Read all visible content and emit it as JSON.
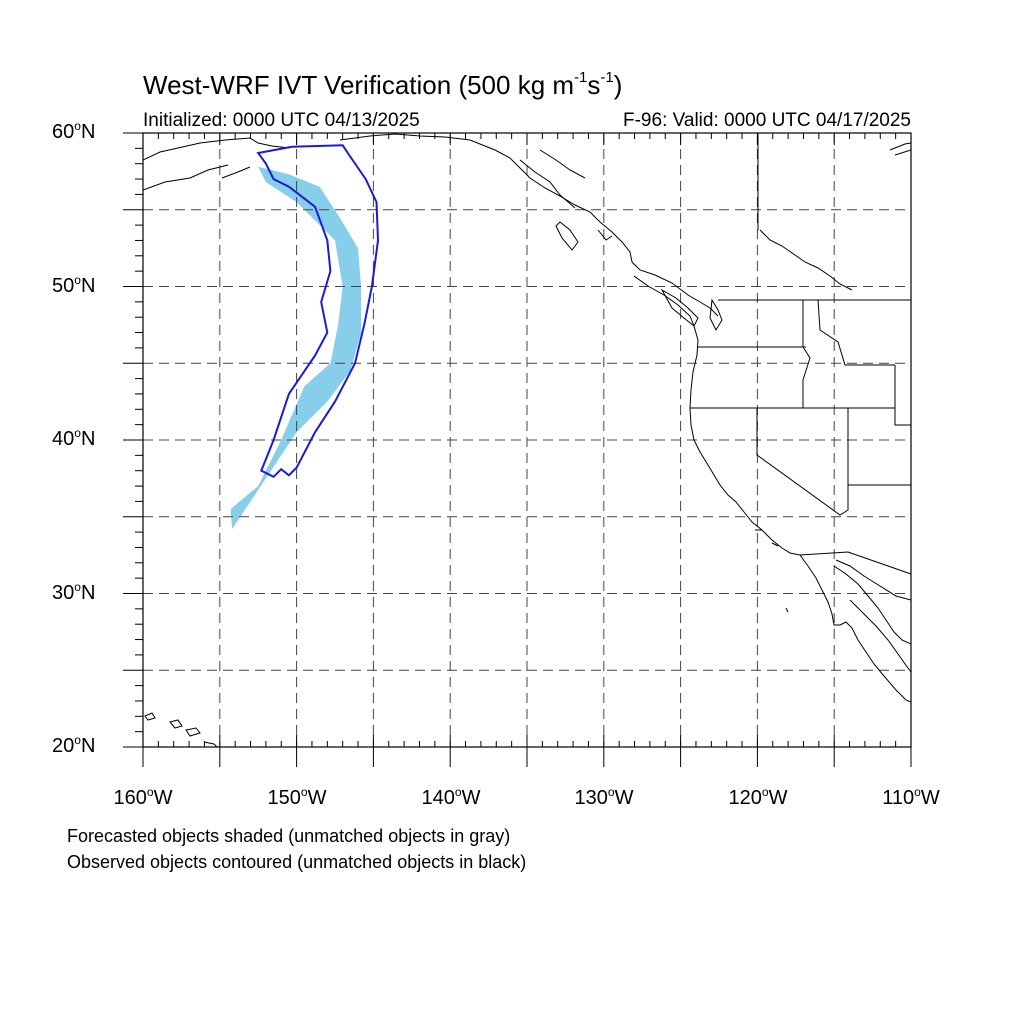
{
  "title": {
    "main": "West-WRF IVT Verification (500 kg m",
    "exp1": "-1",
    "mid": "s",
    "exp2": "-1",
    "end": ")"
  },
  "subtitle_left": "Initialized: 0000 UTC 04/13/2025",
  "subtitle_right": "F-96: Valid: 0000 UTC 04/17/2025",
  "lat_labels": [
    {
      "num": "60",
      "deg": "o",
      "hem": "N"
    },
    {
      "num": "50",
      "deg": "o",
      "hem": "N"
    },
    {
      "num": "40",
      "deg": "o",
      "hem": "N"
    },
    {
      "num": "30",
      "deg": "o",
      "hem": "N"
    },
    {
      "num": "20",
      "deg": "o",
      "hem": "N"
    }
  ],
  "lon_labels": [
    {
      "num": "160",
      "deg": "o",
      "hem": "W"
    },
    {
      "num": "150",
      "deg": "o",
      "hem": "W"
    },
    {
      "num": "140",
      "deg": "o",
      "hem": "W"
    },
    {
      "num": "130",
      "deg": "o",
      "hem": "W"
    },
    {
      "num": "120",
      "deg": "o",
      "hem": "W"
    },
    {
      "num": "110",
      "deg": "o",
      "hem": "W"
    }
  ],
  "notes": [
    "Forecasted objects shaded (unmatched objects in gray)",
    "Observed objects contoured (unmatched objects in black)"
  ],
  "colors": {
    "forecast_fill": "#87ceeb",
    "observed_contour": "#1a1adc",
    "coastline": "#000000",
    "grid": "#444444"
  },
  "chart_data": {
    "type": "map",
    "projection": "cylindrical equidistant",
    "lon_range": [
      -160,
      -110
    ],
    "lat_range": [
      20,
      60
    ],
    "grid_lon": [
      -155,
      -150,
      -145,
      -140,
      -135,
      -130,
      -125,
      -120,
      -115
    ],
    "grid_lat": [
      25,
      30,
      35,
      40,
      45,
      50,
      55
    ],
    "forecast_object": [
      [
        -152.5,
        57.8
      ],
      [
        -150.5,
        57.3
      ],
      [
        -148.5,
        56.5
      ],
      [
        -147.2,
        54.5
      ],
      [
        -146.0,
        52.5
      ],
      [
        -145.8,
        50.0
      ],
      [
        -145.8,
        47.0
      ],
      [
        -146.5,
        44.5
      ],
      [
        -148.0,
        42.5
      ],
      [
        -150.0,
        40.5
      ],
      [
        -152.0,
        37.5
      ],
      [
        -154.2,
        34.2
      ],
      [
        -154.3,
        35.5
      ],
      [
        -152.5,
        37.0
      ],
      [
        -151.0,
        40.0
      ],
      [
        -149.5,
        43.5
      ],
      [
        -147.8,
        45.0
      ],
      [
        -147.3,
        47.5
      ],
      [
        -147.0,
        50.0
      ],
      [
        -147.5,
        53.0
      ],
      [
        -150.0,
        55.5
      ],
      [
        -152.0,
        56.8
      ]
    ],
    "observed_object": [
      [
        -152.5,
        58.7
      ],
      [
        -150.3,
        59.1
      ],
      [
        -147.0,
        59.2
      ],
      [
        -146.6,
        58.6
      ],
      [
        -145.5,
        57.0
      ],
      [
        -144.8,
        55.5
      ],
      [
        -144.7,
        53.0
      ],
      [
        -145.1,
        50.0
      ],
      [
        -145.6,
        47.5
      ],
      [
        -146.2,
        45.0
      ],
      [
        -147.5,
        42.5
      ],
      [
        -148.8,
        40.5
      ],
      [
        -150.0,
        38.2
      ],
      [
        -150.5,
        37.7
      ],
      [
        -151.0,
        38.1
      ],
      [
        -151.5,
        37.6
      ],
      [
        -152.3,
        38.0
      ],
      [
        -151.5,
        40.0
      ],
      [
        -150.5,
        43.0
      ],
      [
        -148.8,
        45.5
      ],
      [
        -148.0,
        47.0
      ],
      [
        -148.4,
        49.0
      ],
      [
        -147.8,
        51.0
      ],
      [
        -148.0,
        53.0
      ],
      [
        -148.8,
        55.2
      ],
      [
        -150.5,
        56.5
      ],
      [
        -151.5,
        57.0
      ],
      [
        -152.0,
        58.0
      ]
    ]
  }
}
